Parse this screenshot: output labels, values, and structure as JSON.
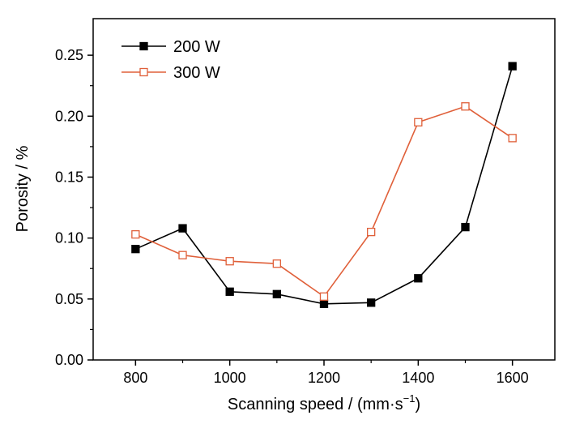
{
  "chart_data": {
    "type": "line",
    "xlabel": "Scanning speed / (mm·s",
    "xlabel_sup": "−1",
    "xlabel_close": ")",
    "ylabel": "Porosity / %",
    "xlim": [
      710,
      1690
    ],
    "ylim": [
      0.0,
      0.28
    ],
    "xticks": [
      800,
      1000,
      1200,
      1400,
      1600
    ],
    "xticks_minor": [
      900,
      1100,
      1300,
      1500
    ],
    "yticks": [
      0.0,
      0.05,
      0.1,
      0.15,
      0.2,
      0.25
    ],
    "ytick_labels": [
      "0.00",
      "0.05",
      "0.10",
      "0.15",
      "0.20",
      "0.25"
    ],
    "xtick_labels": [
      "800",
      "1000",
      "1200",
      "1400",
      "1600"
    ],
    "legend_position": "top-left",
    "grid": false,
    "x": [
      800,
      900,
      1000,
      1100,
      1200,
      1300,
      1400,
      1500,
      1600
    ],
    "series": [
      {
        "name": "200 W",
        "color": "#000000",
        "marker": "filled-square",
        "values": [
          0.091,
          0.108,
          0.056,
          0.054,
          0.046,
          0.047,
          0.067,
          0.109,
          0.241
        ]
      },
      {
        "name": "300 W",
        "color": "#e0603a",
        "marker": "open-square",
        "values": [
          0.103,
          0.086,
          0.081,
          0.079,
          0.052,
          0.105,
          0.195,
          0.208,
          0.182
        ]
      }
    ]
  }
}
